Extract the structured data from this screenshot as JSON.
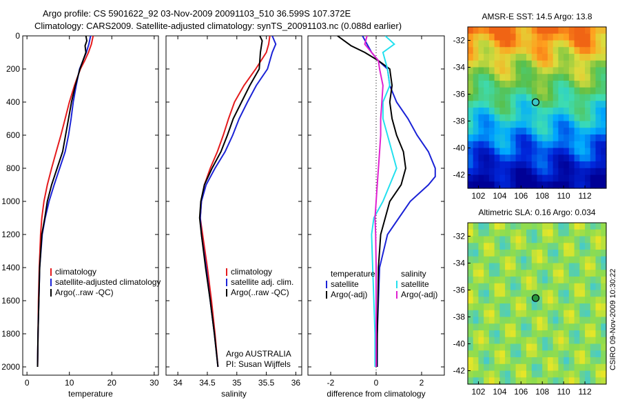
{
  "header": {
    "line1": "Argo profile: CS 5901622_92 03-Nov-2009 20091103_510 36.599S 107.372E",
    "line2": "Climatology: CARS2009. Satellite-adjusted climatology: synTS_20091103.nc (0.088d earlier)"
  },
  "colors": {
    "red": "#e41a1c",
    "blue": "#1a22d6",
    "black": "#000000",
    "cyan": "#22e0ee",
    "magenta": "#e020d0"
  },
  "chart_data": [
    {
      "type": "line",
      "xlabel": "temperature",
      "xlim": [
        -1,
        31
      ],
      "ylim": [
        0,
        2050
      ],
      "xticks": [
        0,
        10,
        20,
        30
      ],
      "yticks": [
        0,
        200,
        400,
        600,
        800,
        1000,
        1200,
        1400,
        1600,
        1800,
        2000
      ],
      "y_reversed": true,
      "legend": [
        "climatology",
        "satellite-adjusted climatology",
        "Argo(..raw -QC)"
      ],
      "series": [
        {
          "name": "climatology",
          "color": "red",
          "y": [
            0,
            50,
            100,
            150,
            200,
            300,
            400,
            500,
            600,
            700,
            800,
            900,
            1000,
            1100,
            1200,
            1400,
            1600,
            1800,
            2000
          ],
          "x": [
            15.6,
            15.2,
            14.5,
            13.6,
            12.6,
            11.2,
            10.0,
            9.0,
            8.0,
            6.9,
            5.8,
            4.8,
            4.0,
            3.5,
            3.2,
            2.9,
            2.7,
            2.6,
            2.5
          ]
        },
        {
          "name": "satellite-adjusted climatology",
          "color": "blue",
          "y": [
            0,
            50,
            100,
            150,
            200,
            300,
            400,
            500,
            600,
            700,
            800,
            900,
            1000,
            1100,
            1200,
            1400,
            1600,
            1800,
            2000
          ],
          "x": [
            15.0,
            14.6,
            14.0,
            13.2,
            12.4,
            11.6,
            10.9,
            10.4,
            9.8,
            9.0,
            7.7,
            6.4,
            5.2,
            4.3,
            3.6,
            3.0,
            2.8,
            2.6,
            2.5
          ]
        },
        {
          "name": "Argo(..raw -QC)",
          "color": "black",
          "y": [
            0,
            30,
            60,
            100,
            150,
            200,
            300,
            400,
            500,
            600,
            700,
            800,
            900,
            1000,
            1100,
            1200,
            1400,
            1600,
            1800,
            2000
          ],
          "x": [
            13.9,
            14.1,
            13.7,
            13.9,
            13.2,
            12.5,
            11.4,
            10.5,
            9.8,
            9.1,
            8.4,
            7.1,
            5.8,
            4.8,
            4.2,
            3.5,
            3.0,
            2.8,
            2.6,
            2.5
          ]
        }
      ]
    },
    {
      "type": "line",
      "xlabel": "salinity",
      "xlim": [
        33.8,
        36.1
      ],
      "ylim": [
        0,
        2050
      ],
      "xticks": [
        34,
        34.5,
        35,
        35.5,
        36
      ],
      "yticks": [
        0,
        200,
        400,
        600,
        800,
        1000,
        1200,
        1400,
        1600,
        1800,
        2000
      ],
      "y_reversed": true,
      "legend": [
        "climatology",
        "satellite adj. clim.",
        "Argo(..raw -QC)"
      ],
      "annotation": [
        "Argo AUSTRALIA",
        "PI: Susan Wijffels"
      ],
      "series": [
        {
          "name": "climatology",
          "color": "red",
          "y": [
            0,
            50,
            100,
            200,
            300,
            400,
            500,
            600,
            700,
            800,
            900,
            1000,
            1100,
            1200,
            1400,
            1600,
            1800,
            2000
          ],
          "x": [
            35.56,
            35.54,
            35.5,
            35.32,
            35.12,
            34.96,
            34.86,
            34.77,
            34.67,
            34.55,
            34.45,
            34.4,
            34.38,
            34.42,
            34.5,
            34.57,
            34.63,
            34.68
          ]
        },
        {
          "name": "satellite adj. clim.",
          "color": "blue",
          "y": [
            0,
            50,
            100,
            200,
            300,
            400,
            500,
            600,
            700,
            800,
            900,
            1000,
            1100,
            1200,
            1400,
            1600,
            1800,
            2000
          ],
          "x": [
            35.6,
            35.66,
            35.6,
            35.52,
            35.33,
            35.18,
            35.04,
            34.93,
            34.8,
            34.63,
            34.48,
            34.4,
            34.38,
            34.4,
            34.48,
            34.55,
            34.62,
            34.68
          ]
        },
        {
          "name": "Argo(..raw -QC)",
          "color": "black",
          "y": [
            0,
            30,
            100,
            200,
            300,
            400,
            500,
            600,
            700,
            800,
            900,
            1000,
            1100,
            1200,
            1400,
            1600,
            1800,
            2000
          ],
          "x": [
            35.39,
            35.43,
            35.4,
            35.38,
            35.22,
            35.08,
            34.94,
            34.84,
            34.73,
            34.58,
            34.45,
            34.39,
            34.37,
            34.4,
            34.47,
            34.55,
            34.62,
            34.68
          ]
        }
      ]
    },
    {
      "type": "line",
      "xlabel": "difference from climatology",
      "xlim": [
        -3,
        3
      ],
      "ylim": [
        0,
        2050
      ],
      "xticks": [
        -2,
        0,
        2
      ],
      "yticks": [
        0,
        200,
        400,
        600,
        800,
        1000,
        1200,
        1400,
        1600,
        1800,
        2000
      ],
      "y_reversed": true,
      "legend": [
        "temperature",
        "satellite",
        "Argo(-adj)",
        "salinity",
        "satellite",
        "Argo(-adj)"
      ],
      "series": [
        {
          "name": "temperature satellite",
          "color": "blue",
          "y": [
            0,
            50,
            100,
            150,
            200,
            300,
            400,
            500,
            600,
            700,
            800,
            850,
            900,
            1000,
            1100,
            1200,
            1400,
            1600,
            1800,
            2000
          ],
          "x": [
            -0.6,
            -0.4,
            -0.2,
            0.1,
            0.5,
            0.6,
            0.9,
            1.4,
            1.8,
            2.3,
            2.6,
            2.6,
            2.3,
            1.5,
            1.0,
            0.5,
            0.15,
            0.1,
            0.05,
            0.05
          ]
        },
        {
          "name": "temperature Argo(-adj)",
          "color": "black",
          "y": [
            0,
            30,
            60,
            100,
            150,
            200,
            300,
            400,
            500,
            600,
            700,
            800,
            900,
            1000,
            1100,
            1200,
            1400,
            1600,
            1800,
            2000
          ],
          "x": [
            -1.7,
            -1.4,
            -1.1,
            -0.5,
            0.1,
            0.6,
            0.7,
            0.6,
            0.7,
            0.9,
            1.2,
            1.3,
            1.1,
            0.6,
            0.4,
            0.2,
            0.1,
            0.08,
            0.05,
            0.03
          ]
        },
        {
          "name": "salinity satellite",
          "color": "cyan",
          "y": [
            0,
            50,
            100,
            150,
            200,
            300,
            400,
            500,
            600,
            700,
            800,
            900,
            1000,
            1100,
            1200,
            1400,
            1600,
            1800,
            2000
          ],
          "x": [
            0.4,
            0.8,
            0.3,
            0.4,
            0.5,
            0.6,
            0.3,
            0.3,
            0.5,
            0.7,
            0.9,
            0.6,
            0.3,
            -0.1,
            -0.2,
            -0.15,
            -0.1,
            -0.05,
            -0.05
          ]
        },
        {
          "name": "salinity Argo(-adj)",
          "color": "magenta",
          "y": [
            0,
            50,
            100,
            150,
            200,
            300,
            400,
            500,
            600,
            700,
            800,
            900,
            1000,
            1100,
            1200,
            1400,
            1600,
            1800,
            2000
          ],
          "x": [
            -0.4,
            -0.5,
            -0.2,
            0.1,
            0.15,
            0.3,
            0.25,
            0.2,
            0.2,
            0.15,
            0.1,
            0.05,
            0.0,
            -0.05,
            -0.02,
            0.0,
            0.0,
            0.0,
            0.0
          ]
        }
      ]
    },
    {
      "type": "heatmap",
      "title": "AMSR-E SST: 14.5 Argo: 13.8",
      "xticks": [
        102,
        104,
        106,
        108,
        110,
        112
      ],
      "yticks": [
        -32,
        -34,
        -36,
        -38,
        -40,
        -42
      ],
      "xlim": [
        101,
        114
      ],
      "ylim": [
        -43,
        -31
      ],
      "marker": {
        "lon": 107.372,
        "lat": -36.599
      }
    },
    {
      "type": "heatmap",
      "title": "Altimetric SLA: 0.16 Argo: 0.034",
      "xticks": [
        102,
        104,
        106,
        108,
        110,
        112
      ],
      "yticks": [
        -32,
        -34,
        -36,
        -38,
        -40,
        -42
      ],
      "xlim": [
        101,
        114
      ],
      "ylim": [
        -43,
        -31
      ],
      "marker": {
        "lon": 107.372,
        "lat": -36.599
      }
    }
  ],
  "footer": {
    "side_label": "CSIRO 09-Nov-2009 10:30:22"
  }
}
